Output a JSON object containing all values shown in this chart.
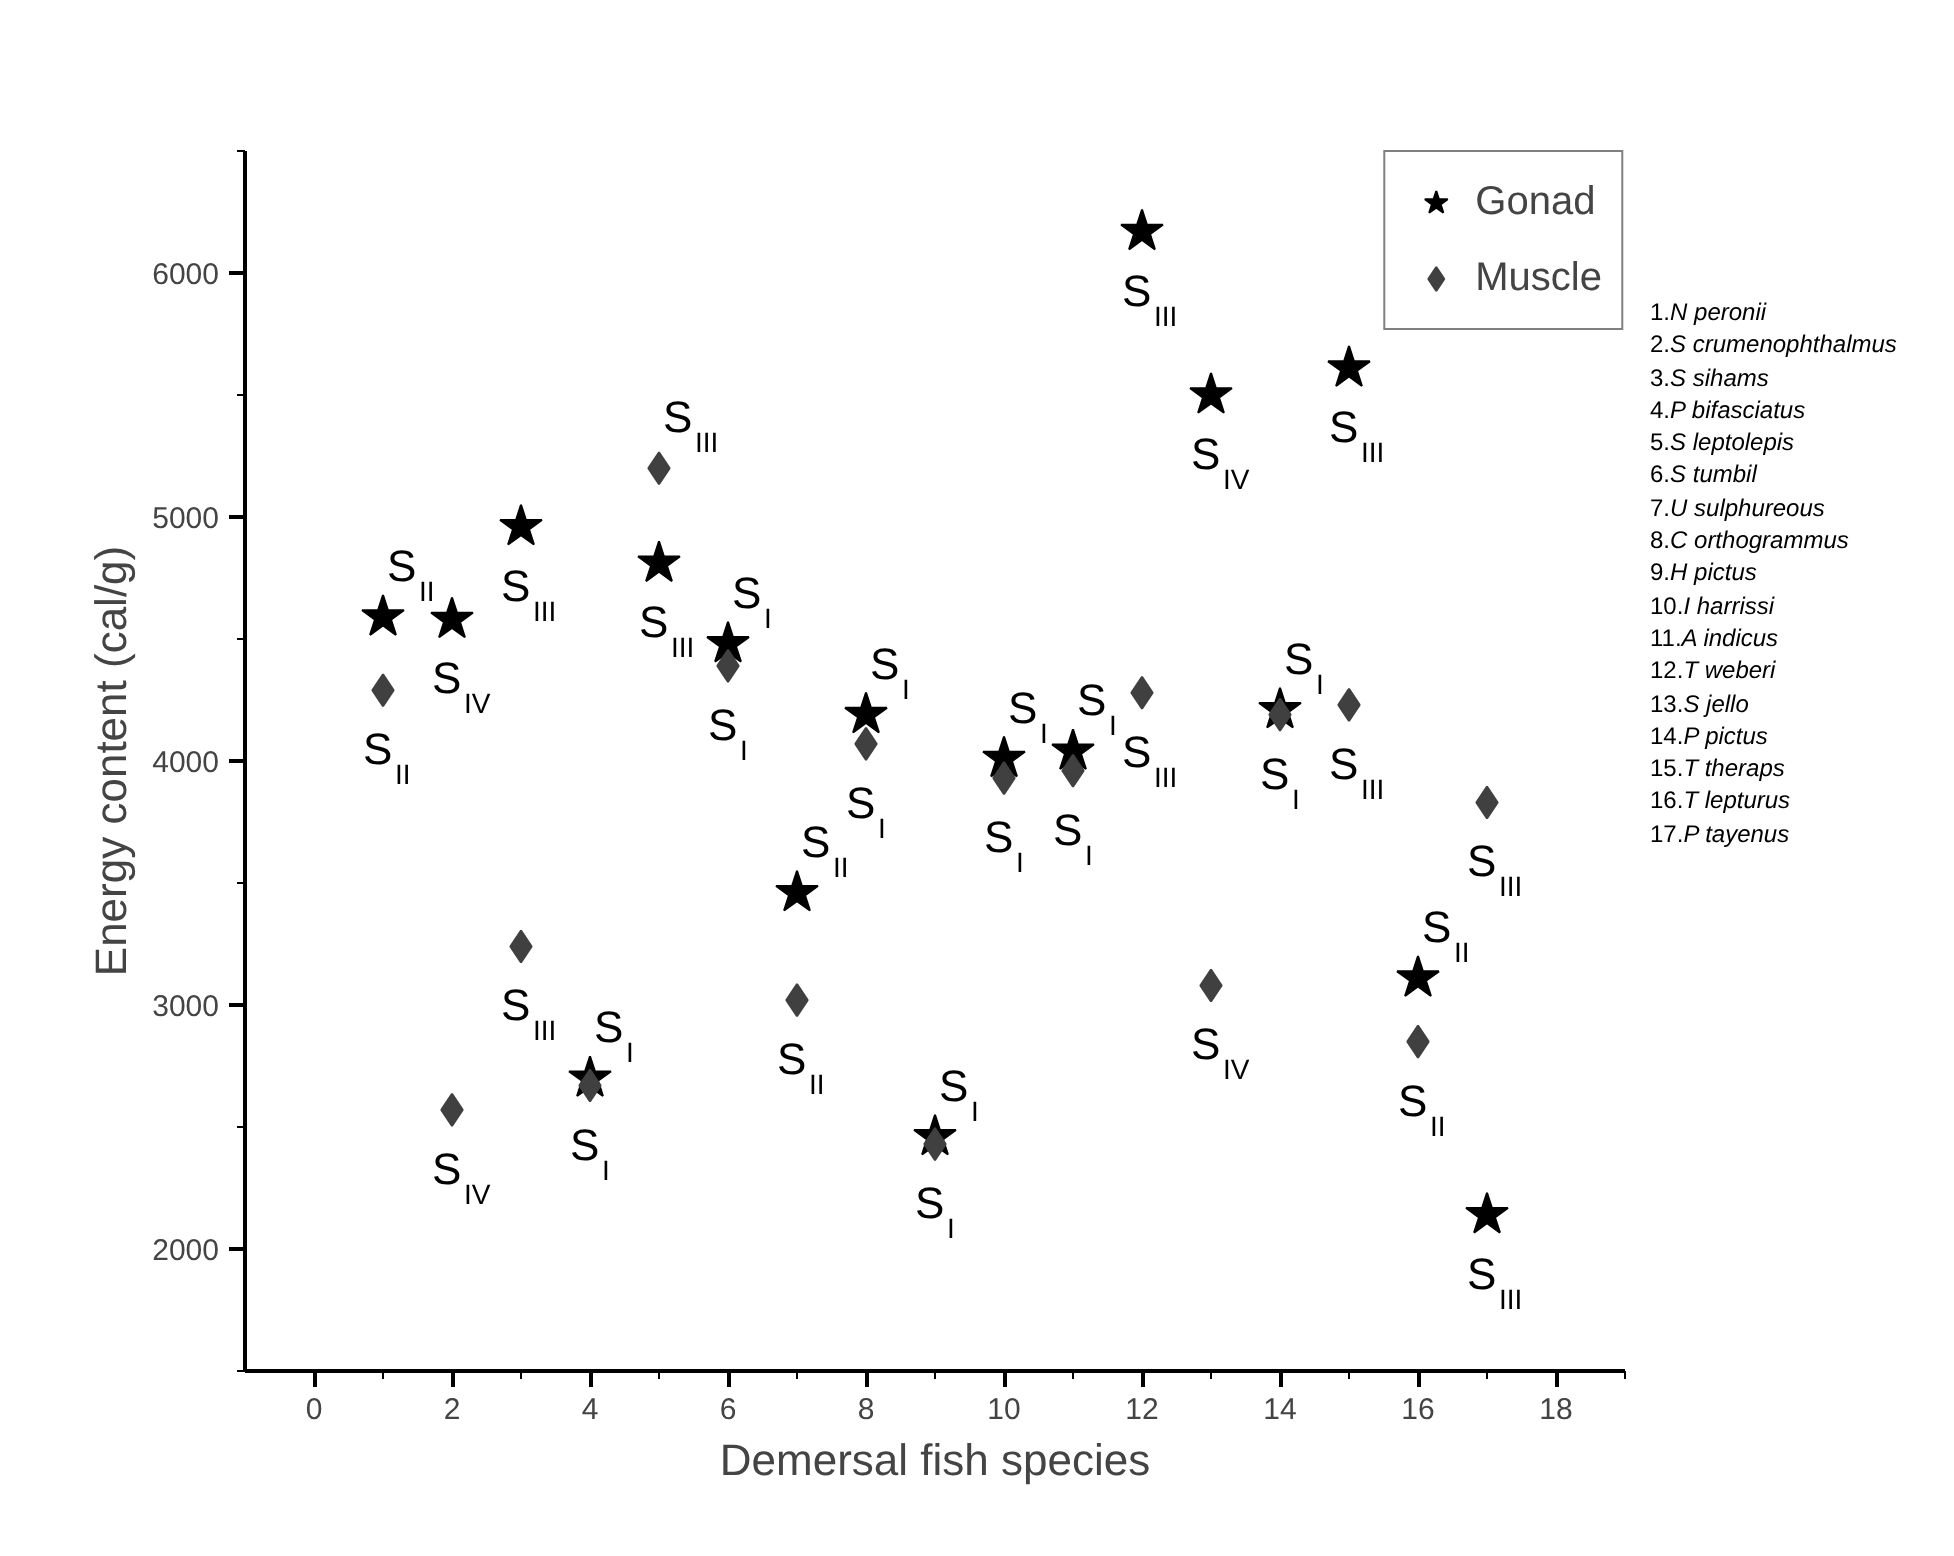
{
  "chart_data": {
    "type": "scatter",
    "xlabel": "Demersal fish species",
    "ylabel": "Energy content (cal/g)",
    "x": [
      1,
      2,
      3,
      4,
      5,
      6,
      7,
      8,
      9,
      10,
      11,
      12,
      13,
      14,
      15,
      16,
      17
    ],
    "xlim": [
      -1,
      19
    ],
    "xticks": [
      0,
      2,
      4,
      6,
      8,
      10,
      12,
      14,
      16,
      18
    ],
    "ylim": [
      1500,
      6500
    ],
    "yticks": [
      2000,
      3000,
      4000,
      5000,
      6000
    ],
    "grid": false,
    "legend": "top right",
    "series": [
      {
        "name": "Gonad",
        "color": "#000000",
        "marker": "star",
        "values": [
          4590,
          4580,
          4960,
          2700,
          4810,
          4480,
          3460,
          4190,
          2460,
          4010,
          4040,
          6170,
          5500,
          4210,
          5610,
          3110,
          2140
        ]
      },
      {
        "name": "Muscle",
        "color": "#404040",
        "marker": "diamond",
        "values": [
          4290,
          2570,
          3240,
          2670,
          5200,
          4390,
          3020,
          4070,
          2430,
          3930,
          3960,
          4280,
          3080,
          4190,
          4230,
          2850,
          3830
        ]
      }
    ],
    "annotations": [
      {
        "text": "S$_{II}$",
        "x": 1,
        "y": 4590
      },
      {
        "text": "S$_{II}$",
        "x": 1,
        "y": 4290
      },
      {
        "text": "S$_{IV}$",
        "x": 2,
        "y": 4580
      },
      {
        "text": "S$_{IV}$",
        "x": 2,
        "y": 2570
      },
      {
        "text": "S$_{III}$",
        "x": 3,
        "y": 4960
      },
      {
        "text": "S$_{III}$",
        "x": 3,
        "y": 3240
      },
      {
        "text": "S$_{I}$",
        "x": 4,
        "y": 2700
      },
      {
        "text": "S$_{I}$",
        "x": 4,
        "y": 2670
      },
      {
        "text": "S$_{III}$",
        "x": 5,
        "y": 4810
      },
      {
        "text": "S$_{III}$",
        "x": 5,
        "y": 5200
      },
      {
        "text": "S$_{I}$",
        "x": 6,
        "y": 4480
      },
      {
        "text": "S$_{I}$",
        "x": 6,
        "y": 4390
      },
      {
        "text": "S$_{II}$",
        "x": 7,
        "y": 3460
      },
      {
        "text": "S$_{II}$",
        "x": 7,
        "y": 3020
      },
      {
        "text": "S$_{I}$",
        "x": 8,
        "y": 4190
      },
      {
        "text": "S$_{I}$",
        "x": 8,
        "y": 4070
      },
      {
        "text": "S$_{I}$",
        "x": 9,
        "y": 2460
      },
      {
        "text": "S$_{I}$",
        "x": 9,
        "y": 2430
      },
      {
        "text": "S$_{I}$",
        "x": 10,
        "y": 4010
      },
      {
        "text": "S$_{I}$",
        "x": 10,
        "y": 3930
      },
      {
        "text": "S$_{I}$",
        "x": 11,
        "y": 4040
      },
      {
        "text": "S$_{I}$",
        "x": 11,
        "y": 3960
      },
      {
        "text": "S$_{III}$",
        "x": 12,
        "y": 6170
      },
      {
        "text": "S$_{III}$",
        "x": 12,
        "y": 4280
      },
      {
        "text": "S$_{IV}$",
        "x": 13,
        "y": 5500
      },
      {
        "text": "S$_{IV}$",
        "x": 13,
        "y": 3080
      },
      {
        "text": "S$_{I}$",
        "x": 14,
        "y": 4210
      },
      {
        "text": "S$_{I}$",
        "x": 14,
        "y": 4190
      },
      {
        "text": "S$_{III}$",
        "x": 15,
        "y": 5610
      },
      {
        "text": "S$_{III}$",
        "x": 15,
        "y": 4230
      },
      {
        "text": "S$_{II}$",
        "x": 16,
        "y": 3110
      },
      {
        "text": "S$_{II}$",
        "x": 16,
        "y": 2850
      },
      {
        "text": "S$_{III}$",
        "x": 17,
        "y": 2140
      },
      {
        "text": "S$_{III}$",
        "x": 17,
        "y": 3830
      },
      "1.N peronii",
      "2.S crumenophthalmus",
      "3.S sihams",
      "4.P bifasciatus",
      "5.S leptolepis",
      "6.S tumbil",
      "7.U sulphureous",
      "8.C orthogrammus",
      "9.H pictus",
      "10.I harrissi",
      "11.A indicus",
      "12.T weberi",
      "13.S jello",
      "14.P pictus",
      "15.T theraps",
      "16.T lepturus",
      "17.P tayenus"
    ]
  }
}
